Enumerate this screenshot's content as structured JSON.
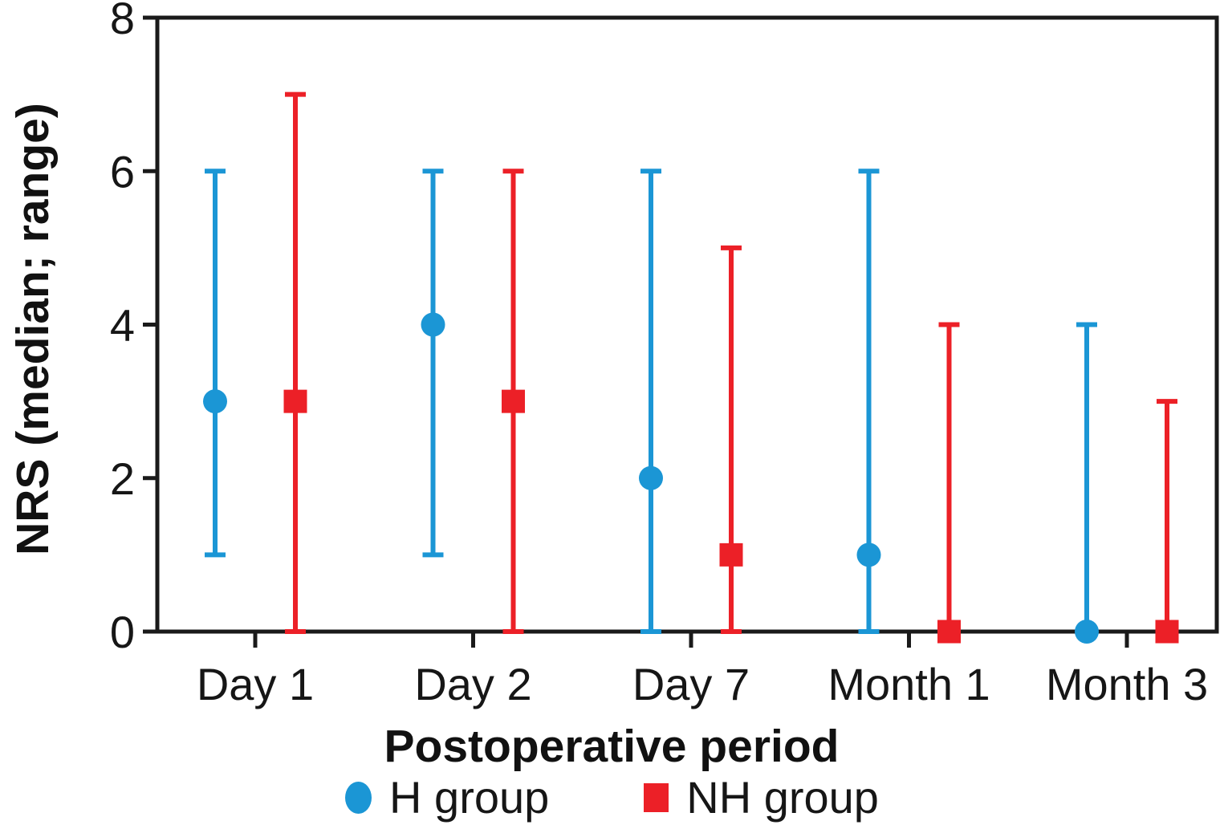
{
  "chart_data": {
    "type": "scatter",
    "title": "",
    "xlabel": "Postoperative period",
    "ylabel": "NRS (median; range)",
    "categories": [
      "Day 1",
      "Day 2",
      "Day 7",
      "Month 1",
      "Month 3"
    ],
    "y_ticks": [
      0,
      2,
      4,
      6,
      8
    ],
    "ylim": [
      0,
      8
    ],
    "grid": false,
    "legend_position": "bottom",
    "axis_color": "#1a1a1a",
    "series": [
      {
        "name": "H group",
        "marker": "circle",
        "color": "#1b96d5",
        "medians": [
          3,
          4,
          2,
          1,
          0
        ],
        "range_low": [
          1,
          1,
          0,
          0,
          0
        ],
        "range_high": [
          6,
          6,
          6,
          6,
          4
        ]
      },
      {
        "name": "NH group",
        "marker": "square",
        "color": "#ec2027",
        "medians": [
          3,
          3,
          1,
          0,
          0
        ],
        "range_low": [
          0,
          0,
          0,
          0,
          0
        ],
        "range_high": [
          7,
          6,
          5,
          4,
          3
        ]
      }
    ]
  }
}
